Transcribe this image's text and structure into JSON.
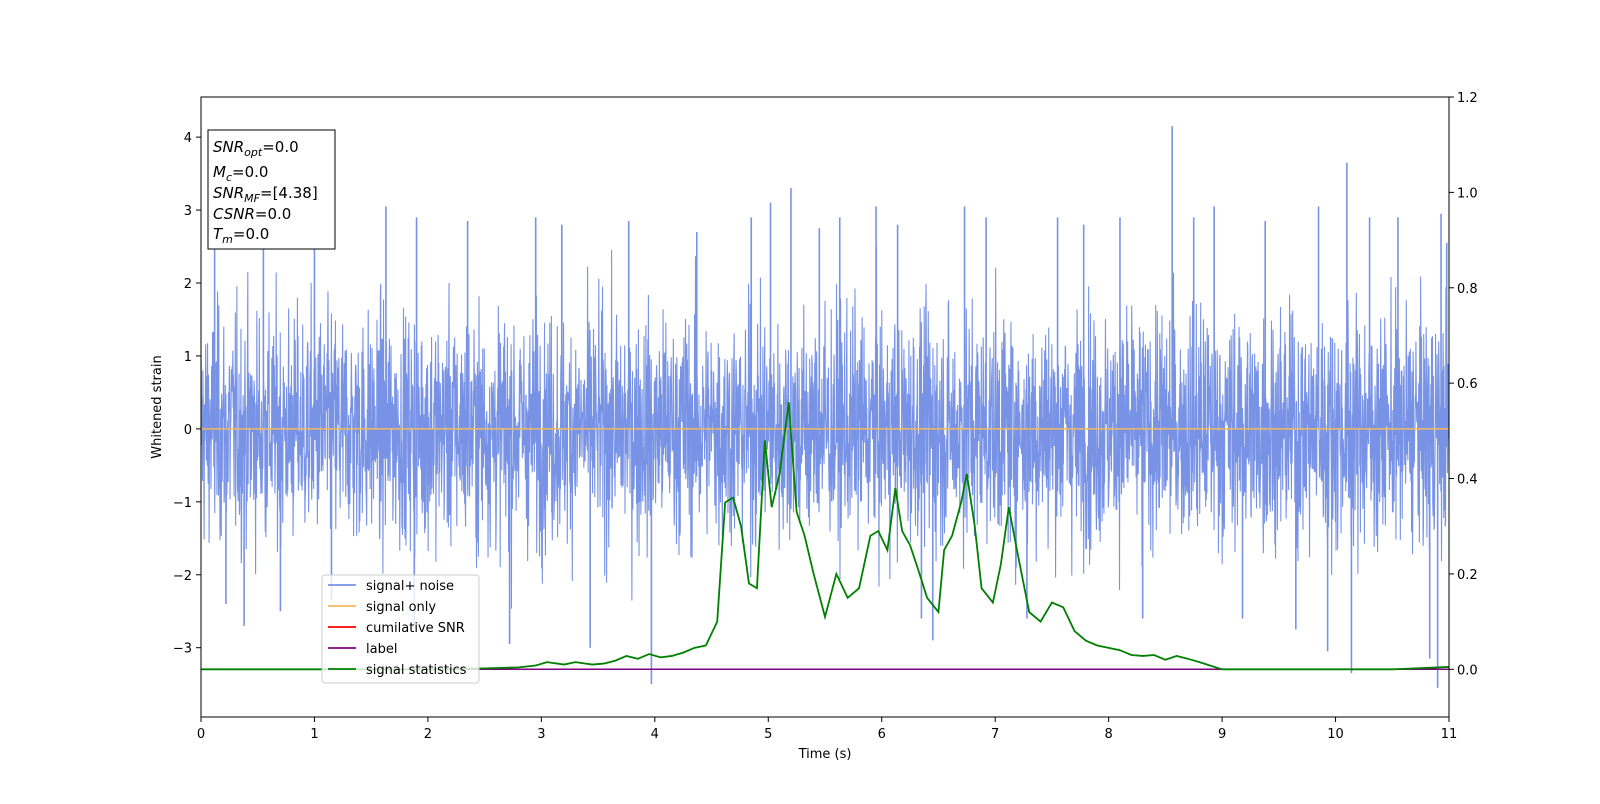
{
  "chart_data": {
    "type": "line",
    "xlabel": "Time (s)",
    "ylabel": "Whitened strain",
    "xlim": [
      0,
      11
    ],
    "ylim": [
      -3.95,
      4.55
    ],
    "ylim_right": [
      -0.1,
      1.2
    ],
    "x_ticks": [
      0,
      1,
      2,
      3,
      4,
      5,
      6,
      7,
      8,
      9,
      10,
      11
    ],
    "y_ticks": [
      -3,
      -2,
      -1,
      0,
      1,
      2,
      3,
      4
    ],
    "y_ticks_right": [
      0.0,
      0.2,
      0.4,
      0.6,
      0.8,
      1.0,
      1.2
    ],
    "grid": false,
    "legend_placement": "lower-left",
    "series": [
      {
        "name": "signal+ noise",
        "axis": "left",
        "color": "#7893e6",
        "description_values": "dense noise, typical range -2 to 2",
        "spikes": [
          [
            0.12,
            2.7
          ],
          [
            0.22,
            -2.4
          ],
          [
            0.38,
            -2.7
          ],
          [
            0.55,
            2.65
          ],
          [
            0.7,
            -2.5
          ],
          [
            1.0,
            2.75
          ],
          [
            1.15,
            -2.35
          ],
          [
            1.63,
            3.05
          ],
          [
            1.88,
            -2.7
          ],
          [
            1.9,
            2.9
          ],
          [
            2.35,
            2.85
          ],
          [
            2.72,
            -2.95
          ],
          [
            2.95,
            2.9
          ],
          [
            3.18,
            2.8
          ],
          [
            3.43,
            -3.0
          ],
          [
            3.77,
            2.85
          ],
          [
            3.97,
            -3.5
          ],
          [
            4.37,
            2.7
          ],
          [
            4.85,
            2.9
          ],
          [
            5.02,
            3.1
          ],
          [
            5.2,
            3.3
          ],
          [
            5.45,
            2.75
          ],
          [
            5.63,
            2.9
          ],
          [
            5.95,
            3.05
          ],
          [
            6.14,
            2.8
          ],
          [
            6.35,
            -2.6
          ],
          [
            6.45,
            -2.9
          ],
          [
            6.73,
            3.05
          ],
          [
            6.92,
            2.9
          ],
          [
            7.28,
            -2.6
          ],
          [
            7.55,
            2.9
          ],
          [
            7.78,
            2.8
          ],
          [
            8.1,
            2.9
          ],
          [
            8.3,
            -2.6
          ],
          [
            8.56,
            4.15
          ],
          [
            8.75,
            2.9
          ],
          [
            8.93,
            3.05
          ],
          [
            9.18,
            -2.6
          ],
          [
            9.38,
            2.85
          ],
          [
            9.65,
            -2.75
          ],
          [
            9.85,
            3.05
          ],
          [
            9.93,
            -3.05
          ],
          [
            10.1,
            3.65
          ],
          [
            10.14,
            -3.35
          ],
          [
            10.3,
            2.9
          ],
          [
            10.55,
            2.9
          ],
          [
            10.83,
            -3.15
          ],
          [
            10.9,
            -3.55
          ],
          [
            10.93,
            2.95
          ],
          [
            10.98,
            2.55
          ]
        ]
      },
      {
        "name": "signal only",
        "axis": "left",
        "color": "#f5b85c",
        "constant": 0.0
      },
      {
        "name": "cumilative SNR",
        "axis": "right",
        "color": "#ff0000",
        "constant": 0.0
      },
      {
        "name": "label",
        "axis": "right",
        "color": "#800080",
        "constant": 0.0
      },
      {
        "name": "signal statistics",
        "axis": "right",
        "color": "#008000",
        "x": [
          0,
          0.5,
          1.0,
          1.5,
          2.0,
          2.5,
          2.8,
          2.95,
          3.05,
          3.2,
          3.3,
          3.45,
          3.55,
          3.65,
          3.75,
          3.85,
          3.95,
          4.05,
          4.15,
          4.25,
          4.35,
          4.45,
          4.55,
          4.62,
          4.69,
          4.76,
          4.83,
          4.9,
          4.97,
          5.03,
          5.1,
          5.18,
          5.25,
          5.32,
          5.4,
          5.5,
          5.6,
          5.7,
          5.8,
          5.9,
          5.97,
          6.05,
          6.12,
          6.18,
          6.25,
          6.32,
          6.4,
          6.5,
          6.55,
          6.62,
          6.7,
          6.75,
          6.82,
          6.88,
          6.98,
          7.05,
          7.12,
          7.2,
          7.3,
          7.4,
          7.5,
          7.6,
          7.7,
          7.8,
          7.9,
          8.0,
          8.1,
          8.2,
          8.3,
          8.4,
          8.5,
          8.6,
          8.7,
          8.8,
          9.0,
          9.5,
          10.0,
          10.5,
          11.0
        ],
        "y": [
          0.0,
          0.0,
          0.0,
          0.0,
          0.0,
          0.002,
          0.004,
          0.008,
          0.015,
          0.01,
          0.015,
          0.01,
          0.012,
          0.018,
          0.028,
          0.022,
          0.032,
          0.025,
          0.028,
          0.035,
          0.045,
          0.05,
          0.1,
          0.35,
          0.36,
          0.3,
          0.18,
          0.17,
          0.48,
          0.34,
          0.41,
          0.56,
          0.33,
          0.28,
          0.2,
          0.11,
          0.2,
          0.15,
          0.17,
          0.28,
          0.29,
          0.25,
          0.38,
          0.29,
          0.26,
          0.21,
          0.15,
          0.12,
          0.25,
          0.28,
          0.35,
          0.41,
          0.3,
          0.17,
          0.14,
          0.22,
          0.34,
          0.24,
          0.12,
          0.1,
          0.14,
          0.13,
          0.08,
          0.06,
          0.05,
          0.045,
          0.04,
          0.03,
          0.028,
          0.03,
          0.02,
          0.028,
          0.022,
          0.015,
          0.0,
          0.0,
          0.0,
          0.0,
          0.005
        ]
      }
    ]
  },
  "info_box": {
    "snr_opt": "=0.0",
    "mc": "=0.0",
    "snr_mf": "=[4.38]",
    "csnr": "=0.0",
    "tm": "=0.0"
  }
}
